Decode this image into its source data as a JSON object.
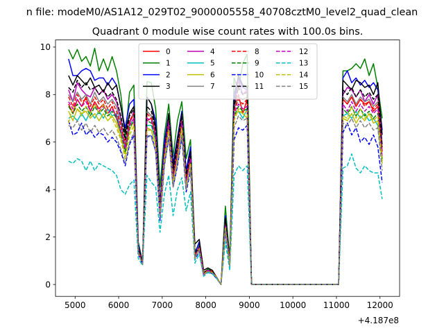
{
  "figure": {
    "suptitle": "n file: modeM0/AS1A12_029T02_9000005558_40708cztM0_level2_quad_clean",
    "title": "Quadrant 0 module wise count rates with 100.0s bins."
  },
  "chart_data": {
    "type": "line",
    "title": "Quadrant 0 module wise count rates with 100.0s bins.",
    "xlabel": "",
    "ylabel": "",
    "x_offset_label": "+4.187e8",
    "xlim": [
      4550,
      12450
    ],
    "ylim": [
      -0.5,
      10.3
    ],
    "xticks": [
      5000,
      6000,
      7000,
      8000,
      9000,
      10000,
      11000,
      12000
    ],
    "yticks": [
      0,
      2,
      4,
      6,
      8,
      10
    ],
    "legend": {
      "placement": "top-center",
      "ncol": 4
    },
    "x": [
      4850,
      4950,
      5050,
      5150,
      5250,
      5350,
      5450,
      5550,
      5650,
      5750,
      5850,
      5950,
      6050,
      6150,
      6250,
      6350,
      6450,
      6550,
      6650,
      6750,
      6850,
      6950,
      7050,
      7150,
      7250,
      7350,
      7450,
      7550,
      7650,
      7750,
      7850,
      7950,
      8050,
      8150,
      8250,
      8350,
      8450,
      8550,
      8650,
      8750,
      8850,
      8950,
      9050,
      11050,
      11150,
      11250,
      11350,
      11450,
      11550,
      11650,
      11750,
      11850,
      11950,
      12050
    ],
    "series": [
      {
        "name": "0",
        "color": "#ff0000",
        "dash": "solid",
        "values": [
          7.6,
          7.2,
          7.8,
          7.5,
          7.9,
          7.3,
          7.7,
          7.4,
          7.6,
          7.2,
          7.5,
          7.0,
          6.4,
          5.8,
          6.8,
          7.2,
          1.4,
          0.9,
          6.9,
          7.0,
          6.3,
          3.1,
          5.6,
          6.8,
          4.6,
          5.6,
          7.0,
          4.4,
          5.4,
          1.2,
          1.6,
          0.5,
          0.6,
          0.55,
          0.3,
          0.0,
          2.6,
          0.9,
          7.4,
          8.0,
          7.2,
          7.8,
          0.0,
          0.0,
          7.8,
          7.6,
          7.9,
          7.5,
          7.8,
          7.6,
          7.7,
          7.3,
          7.5,
          5.6
        ]
      },
      {
        "name": "1",
        "color": "#008000",
        "dash": "solid",
        "values": [
          9.9,
          9.5,
          9.9,
          9.4,
          9.6,
          9.2,
          9.95,
          9.0,
          9.5,
          9.0,
          9.6,
          9.0,
          8.0,
          6.2,
          8.1,
          8.4,
          1.8,
          0.95,
          8.55,
          8.5,
          7.4,
          4.1,
          6.3,
          7.6,
          5.4,
          6.9,
          7.7,
          5.3,
          6.1,
          1.4,
          1.7,
          0.5,
          0.65,
          0.6,
          0.3,
          0.0,
          3.3,
          1.1,
          8.7,
          8.2,
          9.3,
          9.7,
          0.0,
          0.0,
          9.0,
          9.0,
          9.1,
          9.3,
          9.1,
          9.5,
          8.8,
          9.3,
          8.3,
          7.0
        ]
      },
      {
        "name": "2",
        "color": "#0000ff",
        "dash": "solid",
        "values": [
          9.5,
          8.8,
          8.8,
          9.0,
          9.1,
          9.0,
          8.6,
          8.7,
          8.7,
          8.4,
          8.7,
          8.4,
          7.5,
          6.6,
          7.6,
          7.8,
          1.7,
          0.9,
          7.9,
          7.6,
          6.9,
          3.4,
          6.0,
          7.2,
          5.1,
          6.2,
          7.3,
          4.8,
          5.8,
          1.3,
          1.8,
          0.5,
          0.6,
          0.55,
          0.3,
          0.0,
          2.9,
          1.0,
          8.0,
          8.7,
          8.3,
          8.2,
          0.0,
          0.0,
          8.7,
          9.0,
          8.5,
          8.7,
          8.4,
          8.6,
          8.3,
          8.5,
          8.2,
          6.5
        ]
      },
      {
        "name": "3",
        "color": "#000000",
        "dash": "solid",
        "values": [
          8.8,
          8.4,
          8.8,
          8.6,
          8.4,
          8.7,
          8.3,
          8.4,
          8.1,
          8.5,
          8.2,
          8.4,
          7.5,
          6.4,
          7.2,
          7.5,
          1.6,
          0.9,
          7.9,
          7.6,
          6.6,
          3.3,
          5.6,
          7.2,
          4.9,
          6.1,
          7.2,
          4.6,
          5.6,
          1.7,
          1.9,
          0.6,
          0.7,
          0.6,
          0.3,
          0.0,
          2.8,
          1.0,
          7.7,
          8.8,
          8.4,
          8.3,
          0.0,
          0.0,
          8.6,
          8.4,
          8.2,
          8.6,
          8.5,
          8.3,
          8.4,
          8.0,
          8.5,
          6.3
        ]
      },
      {
        "name": "4",
        "color": "#bf00bf",
        "dash": "solid",
        "values": [
          8.2,
          7.7,
          8.5,
          8.2,
          8.0,
          7.9,
          8.3,
          8.0,
          8.2,
          7.8,
          8.0,
          7.7,
          7.0,
          5.8,
          6.8,
          7.3,
          1.5,
          0.9,
          7.3,
          7.1,
          6.4,
          3.2,
          5.6,
          7.0,
          4.6,
          5.8,
          7.1,
          4.5,
          5.5,
          1.2,
          1.6,
          0.5,
          0.6,
          0.55,
          0.3,
          0.0,
          2.6,
          0.9,
          7.4,
          8.6,
          8.0,
          8.2,
          0.0,
          0.0,
          8.0,
          8.3,
          8.2,
          7.9,
          8.2,
          7.7,
          8.0,
          7.6,
          8.0,
          5.9
        ]
      },
      {
        "name": "5",
        "color": "#00bfbf",
        "dash": "solid",
        "values": [
          7.0,
          7.1,
          6.9,
          7.2,
          6.9,
          7.3,
          7.0,
          7.3,
          7.0,
          7.4,
          7.1,
          7.2,
          6.5,
          5.7,
          6.7,
          7.0,
          1.4,
          0.85,
          6.7,
          6.7,
          6.1,
          2.9,
          5.4,
          6.7,
          4.4,
          5.4,
          6.8,
          4.3,
          5.3,
          1.2,
          1.5,
          0.45,
          0.6,
          0.5,
          0.3,
          0.0,
          2.5,
          0.85,
          7.1,
          7.3,
          7.0,
          7.4,
          0.0,
          0.0,
          7.1,
          7.2,
          7.0,
          7.3,
          7.0,
          7.2,
          6.9,
          7.0,
          6.7,
          5.2
        ]
      },
      {
        "name": "6",
        "color": "#bfbf00",
        "dash": "solid",
        "values": [
          7.3,
          6.9,
          7.4,
          7.2,
          7.3,
          7.0,
          7.2,
          6.9,
          7.2,
          6.9,
          7.1,
          6.8,
          6.2,
          5.5,
          6.5,
          6.9,
          1.3,
          0.85,
          6.6,
          6.5,
          5.9,
          2.9,
          5.3,
          6.6,
          4.3,
          5.4,
          6.6,
          4.2,
          5.2,
          1.15,
          1.5,
          0.45,
          0.55,
          0.5,
          0.3,
          0.0,
          2.4,
          0.85,
          7.1,
          7.3,
          7.2,
          7.0,
          0.0,
          0.0,
          7.0,
          6.9,
          7.2,
          6.8,
          7.1,
          6.9,
          7.2,
          6.8,
          6.9,
          5.1
        ]
      },
      {
        "name": "7",
        "color": "#808080",
        "dash": "solid",
        "values": [
          8.0,
          7.7,
          8.1,
          7.8,
          8.0,
          7.6,
          8.1,
          7.7,
          7.9,
          7.6,
          7.8,
          7.5,
          6.8,
          5.9,
          6.9,
          7.2,
          1.5,
          0.9,
          7.3,
          7.1,
          6.4,
          3.2,
          5.6,
          6.9,
          4.6,
          5.7,
          7.0,
          4.4,
          5.4,
          1.25,
          1.6,
          0.5,
          0.6,
          0.55,
          0.3,
          0.0,
          2.6,
          0.9,
          7.4,
          7.9,
          7.8,
          7.9,
          0.0,
          0.0,
          7.9,
          7.7,
          8.0,
          7.6,
          7.9,
          7.7,
          7.8,
          7.5,
          7.7,
          5.7
        ]
      },
      {
        "name": "8",
        "color": "#ff0000",
        "dash": "dashed",
        "values": [
          7.9,
          7.5,
          8.0,
          7.7,
          7.8,
          7.5,
          7.9,
          7.6,
          7.8,
          7.4,
          7.7,
          7.3,
          6.7,
          5.9,
          6.9,
          7.2,
          1.5,
          0.9,
          7.2,
          7.0,
          6.3,
          3.1,
          5.6,
          6.9,
          4.5,
          5.6,
          6.9,
          4.4,
          5.4,
          1.2,
          1.6,
          0.5,
          0.6,
          0.55,
          0.3,
          0.0,
          2.6,
          0.9,
          7.3,
          7.8,
          7.6,
          7.8,
          0.0,
          0.0,
          7.8,
          7.6,
          7.9,
          7.5,
          7.8,
          7.5,
          7.7,
          7.4,
          7.6,
          5.6
        ]
      },
      {
        "name": "9",
        "color": "#008000",
        "dash": "dashed",
        "values": [
          7.5,
          7.2,
          7.6,
          7.3,
          7.5,
          7.1,
          7.5,
          7.2,
          7.4,
          7.1,
          7.3,
          7.0,
          6.4,
          5.6,
          6.6,
          6.9,
          1.4,
          0.85,
          6.9,
          6.8,
          6.1,
          3.0,
          5.4,
          6.7,
          4.4,
          5.4,
          6.8,
          4.3,
          5.2,
          1.2,
          1.5,
          0.45,
          0.55,
          0.5,
          0.3,
          0.0,
          2.5,
          0.85,
          7.1,
          7.5,
          7.3,
          7.4,
          0.0,
          0.0,
          7.4,
          7.2,
          7.5,
          7.1,
          7.4,
          7.1,
          7.3,
          7.0,
          7.2,
          5.3
        ]
      },
      {
        "name": "10",
        "color": "#0000ff",
        "dash": "dashed",
        "values": [
          6.9,
          6.3,
          6.4,
          6.8,
          6.3,
          6.5,
          6.2,
          6.4,
          6.3,
          6.0,
          6.2,
          6.0,
          5.6,
          5.0,
          5.9,
          6.3,
          1.3,
          0.85,
          6.2,
          6.3,
          5.6,
          2.7,
          5.0,
          6.2,
          4.1,
          5.0,
          6.2,
          3.9,
          4.8,
          1.05,
          1.4,
          0.4,
          0.55,
          0.45,
          0.25,
          0.0,
          2.2,
          0.75,
          6.1,
          6.6,
          6.5,
          6.7,
          0.0,
          0.0,
          6.4,
          6.8,
          6.3,
          6.6,
          6.0,
          6.2,
          5.9,
          6.3,
          5.8,
          4.3
        ]
      },
      {
        "name": "11",
        "color": "#000000",
        "dash": "dashed",
        "values": [
          8.3,
          8.1,
          8.6,
          8.3,
          8.5,
          8.2,
          8.3,
          8.0,
          8.2,
          7.9,
          8.1,
          7.8,
          7.1,
          6.1,
          7.1,
          7.4,
          1.5,
          0.9,
          7.5,
          7.3,
          6.5,
          3.2,
          5.7,
          7.0,
          4.7,
          5.8,
          7.1,
          4.5,
          5.5,
          1.3,
          1.6,
          0.5,
          0.6,
          0.55,
          0.3,
          0.0,
          2.7,
          0.95,
          7.5,
          8.3,
          8.0,
          8.1,
          0.0,
          0.0,
          8.2,
          8.0,
          8.3,
          7.9,
          8.2,
          7.9,
          8.1,
          7.8,
          8.0,
          5.8
        ]
      },
      {
        "name": "12",
        "color": "#bf00bf",
        "dash": "dashed",
        "values": [
          7.7,
          7.4,
          7.8,
          7.5,
          7.7,
          7.3,
          7.6,
          7.3,
          7.5,
          7.2,
          7.4,
          7.1,
          6.5,
          5.7,
          6.7,
          7.0,
          1.4,
          0.85,
          7.0,
          6.9,
          6.2,
          3.0,
          5.5,
          6.8,
          4.5,
          5.5,
          6.8,
          4.3,
          5.3,
          1.2,
          1.55,
          0.45,
          0.6,
          0.5,
          0.3,
          0.0,
          2.5,
          0.85,
          7.2,
          7.6,
          7.4,
          7.5,
          0.0,
          0.0,
          7.6,
          7.3,
          7.7,
          7.3,
          7.6,
          7.3,
          7.5,
          7.2,
          7.4,
          5.4
        ]
      },
      {
        "name": "13",
        "color": "#00bfbf",
        "dash": "dashed",
        "values": [
          5.2,
          5.1,
          5.3,
          5.2,
          4.8,
          5.2,
          4.8,
          5.1,
          5.0,
          4.9,
          4.8,
          4.6,
          4.0,
          3.8,
          4.2,
          4.4,
          1.1,
          0.8,
          4.6,
          4.3,
          4.1,
          2.2,
          3.8,
          4.6,
          2.9,
          4.0,
          4.5,
          3.1,
          3.9,
          0.9,
          1.3,
          0.35,
          0.5,
          0.45,
          0.25,
          0.0,
          1.8,
          0.6,
          4.6,
          5.0,
          4.8,
          5.0,
          0.0,
          0.0,
          4.9,
          5.0,
          5.5,
          4.9,
          4.7,
          5.0,
          4.8,
          4.7,
          4.7,
          3.6
        ]
      },
      {
        "name": "14",
        "color": "#bfbf00",
        "dash": "dashed",
        "values": [
          6.8,
          7.5,
          7.4,
          7.1,
          7.5,
          7.2,
          7.6,
          7.2,
          7.6,
          7.2,
          7.0,
          6.6,
          6.1,
          5.3,
          6.3,
          6.7,
          1.35,
          0.85,
          6.5,
          6.5,
          5.8,
          2.9,
          5.3,
          6.5,
          4.3,
          5.3,
          6.6,
          4.1,
          5.1,
          1.1,
          1.5,
          0.45,
          0.55,
          0.5,
          0.3,
          0.0,
          2.4,
          0.8,
          6.9,
          7.4,
          7.2,
          7.3,
          0.0,
          0.0,
          7.1,
          7.0,
          7.5,
          7.0,
          7.4,
          7.0,
          7.2,
          6.9,
          7.1,
          5.2
        ]
      },
      {
        "name": "15",
        "color": "#808080",
        "dash": "dashed",
        "values": [
          6.7,
          6.6,
          6.9,
          6.5,
          6.8,
          6.4,
          6.7,
          6.4,
          6.6,
          6.3,
          6.5,
          6.2,
          5.7,
          5.1,
          6.0,
          6.4,
          1.3,
          0.85,
          6.3,
          6.2,
          5.6,
          2.8,
          5.0,
          6.2,
          4.1,
          5.1,
          6.3,
          4.0,
          4.9,
          1.1,
          1.45,
          0.4,
          0.55,
          0.5,
          0.3,
          0.0,
          2.3,
          0.8,
          6.6,
          7.1,
          6.9,
          7.0,
          0.0,
          0.0,
          6.8,
          6.7,
          7.0,
          6.6,
          6.9,
          6.6,
          6.8,
          6.5,
          6.6,
          4.8
        ]
      }
    ]
  }
}
